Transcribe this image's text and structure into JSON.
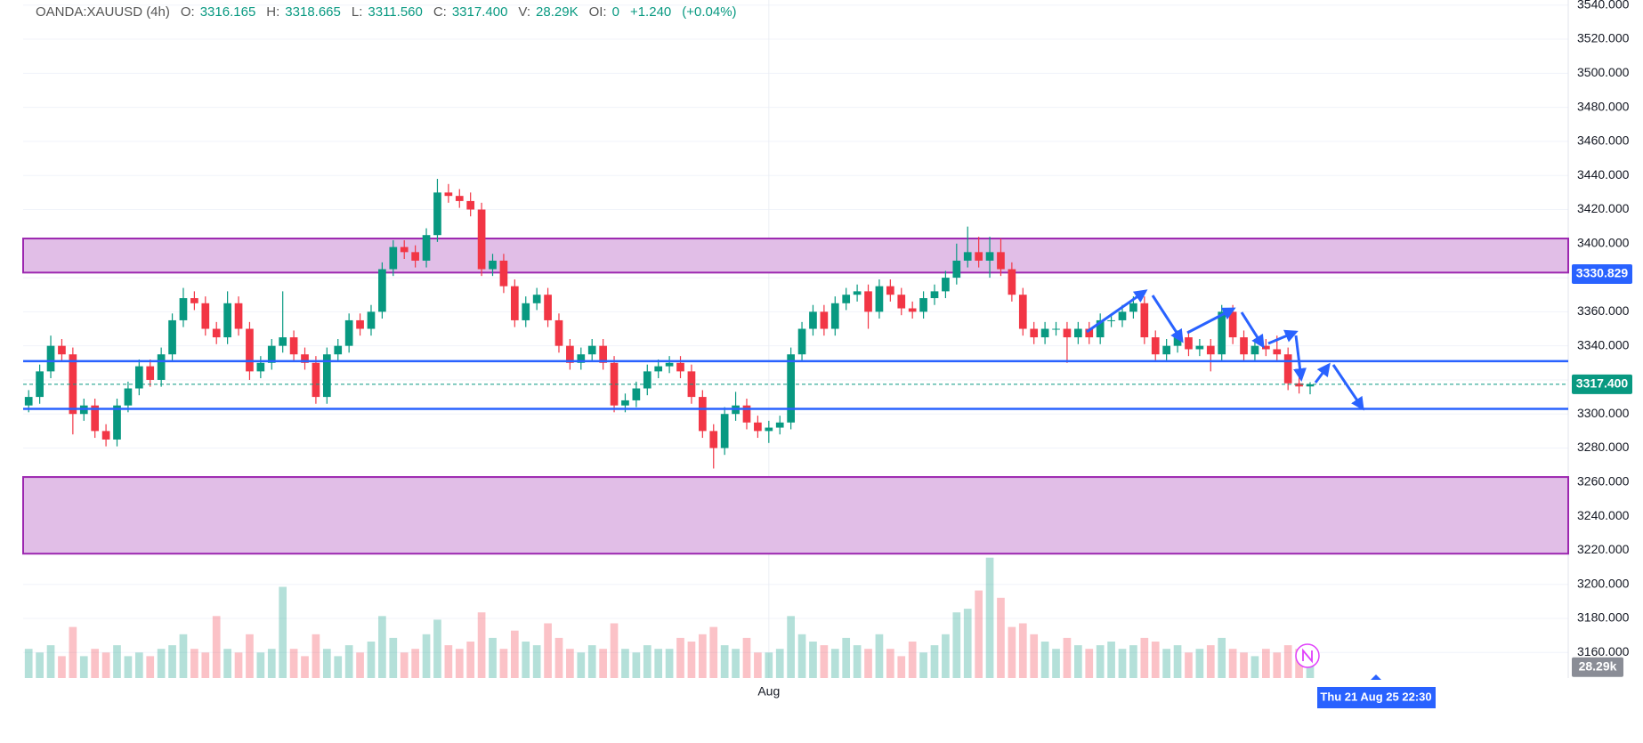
{
  "header": {
    "symbol": "OANDA:XAUUSD (4h)",
    "ohlc": [
      {
        "label": "O:",
        "value": "3316.165"
      },
      {
        "label": "H:",
        "value": "3318.665"
      },
      {
        "label": "L:",
        "value": "3311.560"
      },
      {
        "label": "C:",
        "value": "3317.400"
      },
      {
        "label": "V:",
        "value": "28.29K"
      },
      {
        "label": "OI:",
        "value": "0"
      }
    ],
    "change": "+1.240",
    "change_pct": "(+0.04%)"
  },
  "chart_data": {
    "type": "candlestick",
    "categories": [
      null,
      null,
      null,
      null,
      null,
      null,
      null,
      null,
      null,
      null,
      null,
      null,
      null,
      null,
      null,
      null,
      null,
      null,
      null,
      null,
      null,
      null,
      null,
      null,
      null,
      null,
      null,
      null,
      null,
      null,
      null,
      null,
      null,
      null,
      null,
      null,
      null,
      null,
      null,
      null,
      null,
      null,
      null,
      null,
      null,
      null,
      null,
      null,
      null,
      null,
      null,
      null,
      null,
      null,
      null,
      null,
      null,
      null,
      null,
      null,
      null,
      null,
      null,
      null,
      null,
      null,
      null,
      "Aug",
      null,
      null,
      null,
      null,
      null,
      null,
      null,
      null,
      null,
      null,
      null,
      null,
      null,
      null,
      null,
      null,
      null,
      null,
      null,
      null,
      null,
      null,
      null,
      null,
      null,
      null,
      null,
      null,
      null,
      null,
      null,
      null,
      null,
      null,
      null,
      null,
      null,
      null,
      null,
      null,
      null,
      null,
      null,
      null,
      null,
      null,
      null,
      null,
      null
    ],
    "open": [
      3305,
      3310,
      3325,
      3340,
      3335,
      3300,
      3305,
      3290,
      3285,
      3305,
      3315,
      3328,
      3320,
      3335,
      3355,
      3368,
      3365,
      3350,
      3345,
      3365,
      3350,
      3325,
      3330,
      3340,
      3345,
      3335,
      3330,
      3310,
      3335,
      3340,
      3355,
      3350,
      3360,
      3385,
      3398,
      3395,
      3390,
      3405,
      3430,
      3428,
      3425,
      3420,
      3385,
      3390,
      3375,
      3355,
      3365,
      3370,
      3355,
      3340,
      3330,
      3335,
      3340,
      3330,
      3305,
      3308,
      3315,
      3325,
      3328,
      3330,
      3325,
      3310,
      3290,
      3280,
      3300,
      3305,
      3295,
      3290,
      3292,
      3295,
      3335,
      3350,
      3360,
      3350,
      3365,
      3370,
      3372,
      3360,
      3375,
      3370,
      3362,
      3360,
      3368,
      3372,
      3380,
      3390,
      3395,
      3390,
      3395,
      3385,
      3370,
      3350,
      3345,
      3350,
      3350,
      3345,
      3350,
      3345,
      3355,
      3355,
      3360,
      3365,
      3345,
      3335,
      3340,
      3345,
      3338,
      3340,
      3335,
      3360,
      3345,
      3335,
      3340,
      3338,
      3335,
      3318,
      3316.165
    ],
    "high": [
      3314,
      3329,
      3346,
      3344,
      3339,
      3309,
      3309,
      3294,
      3309,
      3319,
      3332,
      3332,
      3339,
      3359,
      3374,
      3372,
      3369,
      3354,
      3372,
      3369,
      3354,
      3334,
      3344,
      3372,
      3349,
      3339,
      3334,
      3339,
      3344,
      3359,
      3359,
      3364,
      3389,
      3402,
      3402,
      3399,
      3409,
      3438,
      3435,
      3432,
      3430,
      3424,
      3394,
      3394,
      3379,
      3369,
      3374,
      3374,
      3359,
      3344,
      3339,
      3344,
      3344,
      3334,
      3312,
      3319,
      3329,
      3332,
      3334,
      3334,
      3329,
      3314,
      3294,
      3304,
      3313,
      3309,
      3299,
      3296,
      3299,
      3339,
      3354,
      3364,
      3364,
      3369,
      3374,
      3376,
      3376,
      3379,
      3379,
      3374,
      3366,
      3372,
      3376,
      3384,
      3400,
      3410,
      3404,
      3404,
      3403,
      3389,
      3374,
      3354,
      3354,
      3354,
      3354,
      3354,
      3354,
      3359,
      3359,
      3364,
      3369,
      3369,
      3349,
      3344,
      3349,
      3349,
      3344,
      3344,
      3364,
      3364,
      3349,
      3344,
      3344,
      3346,
      3339,
      3322,
      3318.665
    ],
    "low": [
      3301,
      3306,
      3321,
      3331,
      3288,
      3296,
      3286,
      3281,
      3281,
      3301,
      3311,
      3316,
      3316,
      3331,
      3351,
      3361,
      3346,
      3341,
      3341,
      3346,
      3320,
      3321,
      3326,
      3336,
      3331,
      3326,
      3306,
      3306,
      3331,
      3336,
      3346,
      3346,
      3356,
      3381,
      3391,
      3386,
      3386,
      3401,
      3424,
      3421,
      3416,
      3381,
      3381,
      3371,
      3351,
      3351,
      3361,
      3351,
      3336,
      3326,
      3326,
      3331,
      3326,
      3301,
      3301,
      3304,
      3311,
      3321,
      3324,
      3321,
      3306,
      3286,
      3268,
      3276,
      3296,
      3291,
      3286,
      3283,
      3288,
      3291,
      3331,
      3346,
      3346,
      3346,
      3361,
      3366,
      3350,
      3356,
      3366,
      3358,
      3356,
      3356,
      3364,
      3368,
      3376,
      3386,
      3386,
      3380,
      3381,
      3366,
      3346,
      3341,
      3341,
      3346,
      3330,
      3341,
      3341,
      3341,
      3351,
      3351,
      3356,
      3341,
      3331,
      3331,
      3336,
      3334,
      3334,
      3325,
      3331,
      3341,
      3331,
      3331,
      3334,
      3331,
      3314,
      3312,
      3311.56
    ],
    "close": [
      3310,
      3325,
      3340,
      3335,
      3300,
      3305,
      3290,
      3285,
      3305,
      3315,
      3328,
      3320,
      3335,
      3355,
      3368,
      3365,
      3350,
      3345,
      3365,
      3350,
      3325,
      3330,
      3340,
      3345,
      3335,
      3330,
      3310,
      3335,
      3340,
      3355,
      3350,
      3360,
      3385,
      3398,
      3395,
      3390,
      3405,
      3430,
      3428,
      3425,
      3420,
      3385,
      3390,
      3375,
      3355,
      3365,
      3370,
      3355,
      3340,
      3330,
      3335,
      3340,
      3330,
      3305,
      3308,
      3315,
      3325,
      3328,
      3330,
      3325,
      3310,
      3290,
      3280,
      3300,
      3305,
      3295,
      3290,
      3292,
      3295,
      3335,
      3350,
      3360,
      3350,
      3365,
      3370,
      3372,
      3360,
      3375,
      3370,
      3362,
      3360,
      3368,
      3372,
      3380,
      3390,
      3395,
      3390,
      3395,
      3385,
      3370,
      3350,
      3345,
      3350,
      3350,
      3345,
      3350,
      3345,
      3355,
      3355,
      3360,
      3365,
      3345,
      3335,
      3340,
      3345,
      3338,
      3340,
      3335,
      3360,
      3345,
      3335,
      3340,
      3338,
      3335,
      3318,
      3316.16,
      3317.4
    ],
    "volume": [
      40,
      35,
      45,
      30,
      70,
      30,
      40,
      35,
      45,
      30,
      35,
      30,
      40,
      45,
      60,
      40,
      35,
      85,
      40,
      35,
      60,
      35,
      40,
      125,
      40,
      30,
      60,
      40,
      30,
      45,
      35,
      50,
      85,
      55,
      35,
      40,
      60,
      80,
      45,
      40,
      50,
      90,
      55,
      40,
      65,
      50,
      45,
      75,
      55,
      40,
      35,
      45,
      40,
      75,
      40,
      35,
      45,
      40,
      40,
      55,
      50,
      60,
      70,
      45,
      40,
      55,
      35,
      35,
      40,
      85,
      60,
      50,
      45,
      40,
      55,
      45,
      40,
      60,
      40,
      30,
      50,
      35,
      45,
      60,
      90,
      95,
      120,
      165,
      110,
      70,
      75,
      60,
      50,
      40,
      55,
      45,
      40,
      45,
      50,
      40,
      45,
      55,
      50,
      40,
      45,
      35,
      40,
      45,
      55,
      40,
      35,
      30,
      40,
      35,
      45,
      40,
      28.29
    ],
    "ylim": [
      3145,
      3543
    ],
    "yticks": [
      {
        "value": 3160,
        "label": "3160.000"
      },
      {
        "value": 3180,
        "label": "3180.000"
      },
      {
        "value": 3200,
        "label": "3200.000"
      },
      {
        "value": 3220,
        "label": "3220.000"
      },
      {
        "value": 3240,
        "label": "3240.000"
      },
      {
        "value": 3260,
        "label": "3260.000"
      },
      {
        "value": 3280,
        "label": "3280.000"
      },
      {
        "value": 3300,
        "label": "3300.000"
      },
      {
        "value": 3320,
        "label": "3320.000"
      },
      {
        "value": 3340,
        "label": "3340.000"
      },
      {
        "value": 3360,
        "label": "3360.000"
      },
      {
        "value": 3380,
        "label": "3380.000"
      },
      {
        "value": 3400,
        "label": "3400.000"
      },
      {
        "value": 3420,
        "label": "3420.000"
      },
      {
        "value": 3440,
        "label": "3440.000"
      },
      {
        "value": 3460,
        "label": "3460.000"
      },
      {
        "value": 3480,
        "label": "3480.000"
      },
      {
        "value": 3500,
        "label": "3500.000"
      },
      {
        "value": 3520,
        "label": "3520.000"
      },
      {
        "value": 3540,
        "label": "3540.000"
      }
    ],
    "volume_ylim": [
      0,
      200
    ],
    "grid": true,
    "up_color": "#089981",
    "down_color": "#f23645",
    "zones": [
      [
        3383,
        3403
      ],
      [
        3218,
        3263
      ]
    ],
    "zone_color": "#e1bee7",
    "zone_border": "#9c27b0",
    "levels": [
      3331,
      3303
    ],
    "level_color": "#2962ff",
    "last_price": {
      "value": 3317.4,
      "label": "3317.400"
    },
    "last_volume": {
      "value": 28.29,
      "label": "28.29k"
    },
    "price_badge": "3330.829",
    "cursor_label": "Thu 21 Aug 25 22:30"
  }
}
